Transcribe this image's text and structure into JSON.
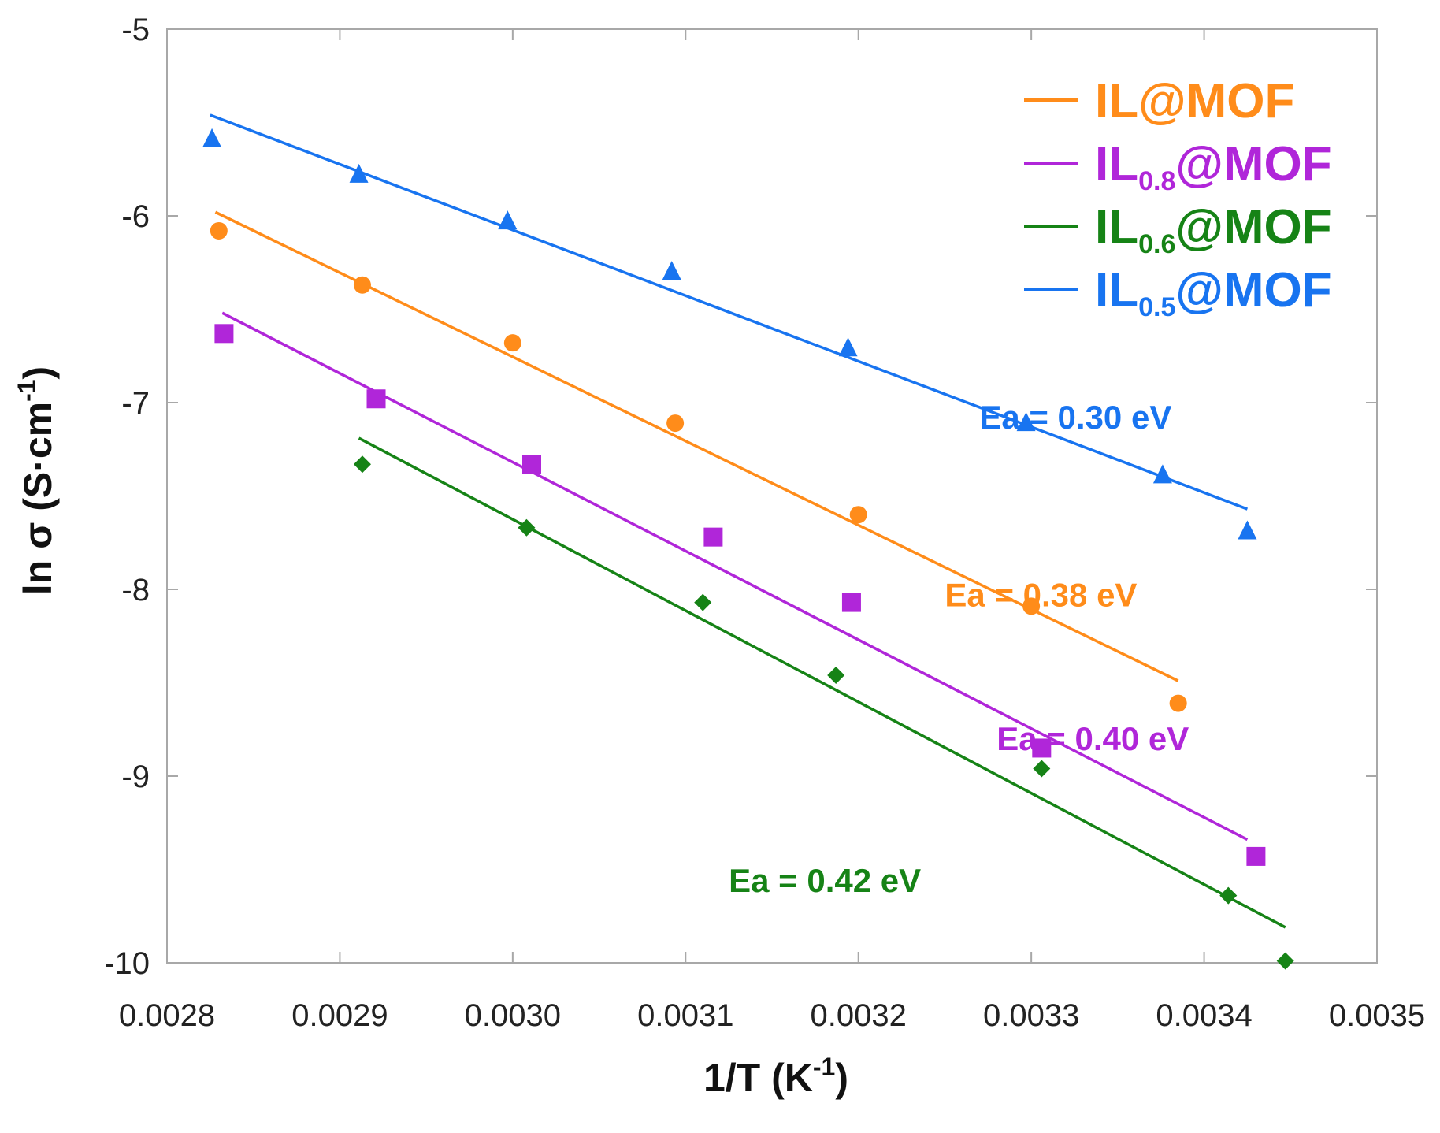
{
  "chart_data": {
    "type": "scatter",
    "title": "",
    "xlabel": "1/T (K",
    "xlabel_sup": "-1",
    "xlabel_end": ")",
    "ylabel": "ln σ (S·cm",
    "ylabel_sup": "-1",
    "ylabel_end": ")",
    "xlim": [
      0.0028,
      0.0035
    ],
    "ylim": [
      -10,
      -5
    ],
    "xticks": [
      0.0028,
      0.0029,
      0.003,
      0.0031,
      0.0032,
      0.0033,
      0.0034,
      0.0035
    ],
    "xtick_labels": [
      "0.0028",
      "0.0029",
      "0.0030",
      "0.0031",
      "0.0032",
      "0.0033",
      "0.0034",
      "0.0035"
    ],
    "yticks": [
      -5,
      -6,
      -7,
      -8,
      -9,
      -10
    ],
    "ytick_labels": [
      "-5",
      "-6",
      "-7",
      "-8",
      "-9",
      "-10"
    ],
    "grid": false,
    "legend_position": "top-right",
    "series": [
      {
        "name": "IL@MOF",
        "legend": {
          "main": "IL",
          "sub": "",
          "tail": "@MOF"
        },
        "color": "#ff8c1a",
        "marker": "circle",
        "x": [
          0.00283,
          0.002913,
          0.003,
          0.003094,
          0.0032,
          0.0033,
          0.003385
        ],
        "y": [
          -6.08,
          -6.37,
          -6.68,
          -7.11,
          -7.6,
          -8.09,
          -8.61
        ],
        "fit": {
          "x": [
            0.002828,
            0.003385
          ],
          "y": [
            -5.98,
            -8.49
          ]
        },
        "annotation": "Ea = 0.38 eV"
      },
      {
        "name": "IL0.8@MOF",
        "legend": {
          "main": "IL",
          "sub": "0.8",
          "tail": "@MOF"
        },
        "color": "#b026d9",
        "marker": "square",
        "x": [
          0.002833,
          0.002921,
          0.003011,
          0.003116,
          0.003196,
          0.003306,
          0.00343
        ],
        "y": [
          -6.63,
          -6.98,
          -7.33,
          -7.72,
          -8.07,
          -8.85,
          -9.43
        ],
        "fit": {
          "x": [
            0.002832,
            0.003425
          ],
          "y": [
            -6.52,
            -9.34
          ]
        },
        "annotation": "Ea = 0.40 eV"
      },
      {
        "name": "IL0.6@MOF",
        "legend": {
          "main": "IL",
          "sub": "0.6",
          "tail": "@MOF"
        },
        "color": "#168316",
        "marker": "diamond",
        "x": [
          0.002913,
          0.003008,
          0.00311,
          0.003187,
          0.003306,
          0.003414,
          0.003447
        ],
        "y": [
          -7.33,
          -7.67,
          -8.07,
          -8.46,
          -8.96,
          -9.64,
          -9.99
        ],
        "fit": {
          "x": [
            0.002911,
            0.003447
          ],
          "y": [
            -7.19,
            -9.81
          ]
        },
        "annotation": "Ea = 0.42 eV"
      },
      {
        "name": "IL0.5@MOF",
        "legend": {
          "main": "IL",
          "sub": "0.5",
          "tail": "@MOF"
        },
        "color": "#1874f0",
        "marker": "triangle",
        "x": [
          0.002826,
          0.002911,
          0.002997,
          0.003092,
          0.003194,
          0.003297,
          0.003376,
          0.003425
        ],
        "y": [
          -5.59,
          -5.78,
          -6.03,
          -6.3,
          -6.71,
          -7.11,
          -7.39,
          -7.69
        ],
        "fit": {
          "x": [
            0.002825,
            0.003425
          ],
          "y": [
            -5.46,
            -7.57
          ]
        },
        "annotation": "Ea = 0.30 eV"
      }
    ],
    "legend_order": [
      0,
      1,
      2,
      3
    ]
  }
}
